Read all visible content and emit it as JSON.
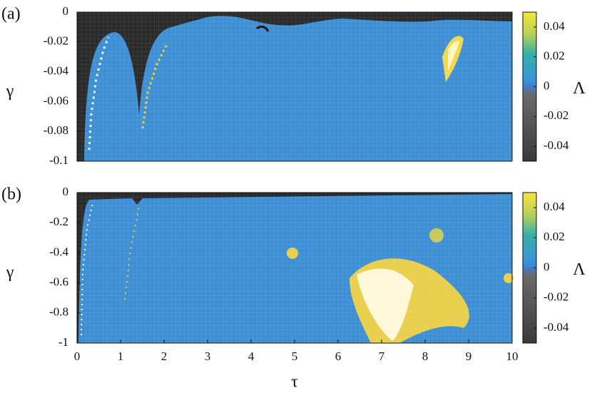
{
  "chart_data": [
    {
      "type": "heatmap",
      "panel_label": "(a)",
      "ylabel": "γ",
      "xlim": [
        0,
        10
      ],
      "ylim": [
        -0.1,
        0
      ],
      "yticks": [
        0,
        -0.02,
        -0.04,
        -0.06,
        -0.08,
        -0.1
      ],
      "colorbar_label": "Λ",
      "colorbar_lim": [
        -0.05,
        0.05
      ],
      "colorbar_ticks": [
        0.04,
        0.02,
        0,
        -0.02,
        -0.04
      ]
    },
    {
      "type": "heatmap",
      "panel_label": "(b)",
      "ylabel": "γ",
      "xlabel": "τ",
      "xlim": [
        0,
        10
      ],
      "xticks": [
        0,
        1,
        2,
        3,
        4,
        5,
        6,
        7,
        8,
        9,
        10
      ],
      "ylim": [
        -1,
        0
      ],
      "yticks": [
        0,
        -0.2,
        -0.4,
        -0.6,
        -0.8,
        -1
      ],
      "colorbar_label": "Λ",
      "colorbar_lim": [
        -0.05,
        0.05
      ],
      "colorbar_ticks": [
        0.04,
        0.02,
        0,
        -0.02,
        -0.04
      ]
    }
  ]
}
